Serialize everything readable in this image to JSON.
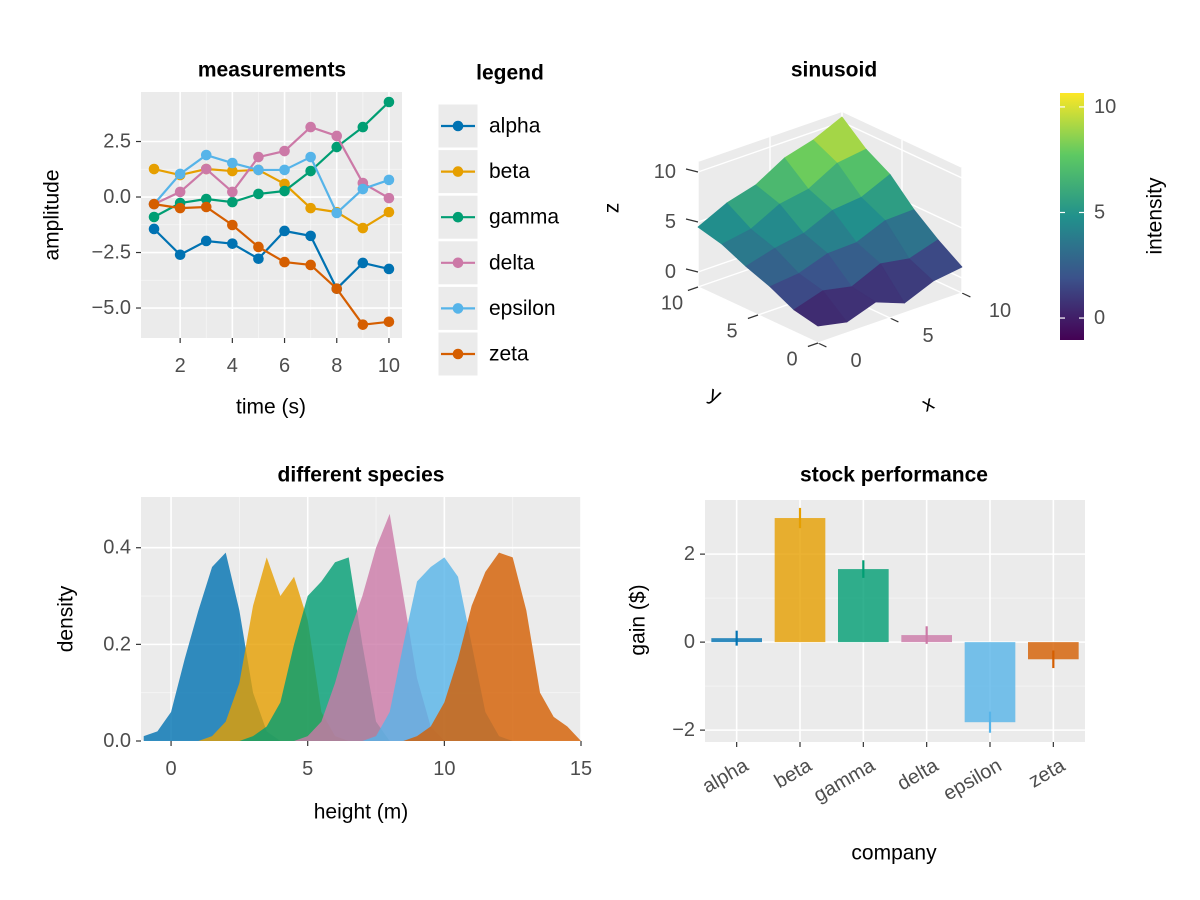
{
  "chart_data": [
    {
      "type": "line",
      "title": "measurements",
      "x_label": "time (s)",
      "y_label": "amplitude",
      "legend_title": "legend",
      "x": [
        1,
        2,
        3,
        4,
        5,
        6,
        7,
        8,
        9,
        10
      ],
      "series": [
        {
          "name": "alpha",
          "color": "#0072B2",
          "values": [
            -1.44,
            -2.6,
            -1.98,
            -2.1,
            -2.78,
            -1.53,
            -1.75,
            -4.13,
            -2.97,
            -3.24
          ]
        },
        {
          "name": "beta",
          "color": "#E69F00",
          "values": [
            1.26,
            0.99,
            1.26,
            1.17,
            1.22,
            0.59,
            -0.5,
            -0.68,
            -1.4,
            -0.68
          ]
        },
        {
          "name": "gamma",
          "color": "#009E73",
          "values": [
            -0.9,
            -0.27,
            -0.09,
            -0.23,
            0.14,
            0.27,
            1.17,
            2.25,
            3.15,
            4.28
          ]
        },
        {
          "name": "delta",
          "color": "#CC79A7",
          "values": [
            -0.32,
            0.23,
            1.26,
            0.23,
            1.8,
            2.07,
            3.15,
            2.75,
            0.63,
            -0.05
          ]
        },
        {
          "name": "epsilon",
          "color": "#56B4E9",
          "values": [
            -0.32,
            1.04,
            1.89,
            1.53,
            1.22,
            1.22,
            1.8,
            -0.72,
            0.36,
            0.77
          ]
        },
        {
          "name": "zeta",
          "color": "#D55E00",
          "values": [
            -0.32,
            -0.5,
            -0.45,
            -1.26,
            -2.25,
            -2.93,
            -3.06,
            -4.13,
            -5.75,
            -5.62
          ]
        }
      ],
      "xlim": [
        0.5,
        10.5
      ],
      "xticks": [
        2,
        4,
        6,
        8,
        10
      ],
      "ylim": [
        -6.35,
        4.73
      ],
      "yticks": [
        {
          "value": 2.5,
          "label": "2.5"
        },
        {
          "value": 0,
          "label": "0.0"
        },
        {
          "value": -2.5,
          "label": "−2.5"
        },
        {
          "value": -5,
          "label": "−5.0"
        }
      ],
      "grid": true,
      "minor_grid": true
    },
    {
      "type": "surface",
      "title": "sinusoid",
      "x_label": "x",
      "y_label": "y",
      "z_label": "z",
      "colorbar_label": "intensity",
      "x": [
        0,
        2,
        4,
        6,
        8,
        10
      ],
      "y": [
        0,
        2,
        4,
        6,
        8,
        10
      ],
      "z": [
        [
          0.2,
          -0.4,
          0.6,
          -0.5,
          0.7,
          1.1
        ],
        [
          0.7,
          1.6,
          1.0,
          2.3,
          1.8,
          2.7
        ],
        [
          1.9,
          2.2,
          3.2,
          3.3,
          4.5,
          4.6
        ],
        [
          2.8,
          3.6,
          4.1,
          5.4,
          5.7,
          7.0
        ],
        [
          3.9,
          4.4,
          5.9,
          6.4,
          8.0,
          8.4
        ],
        [
          4.5,
          5.9,
          6.7,
          8.4,
          9.2,
          10.5
        ]
      ],
      "xlim": [
        0,
        10
      ],
      "ylim": [
        0,
        10
      ],
      "zlim": [
        -1.5,
        11
      ],
      "xticks": [
        0,
        5,
        10
      ],
      "yticks": [
        0,
        5,
        10
      ],
      "zticks": [
        0,
        5,
        10
      ],
      "clim": [
        -1.04,
        10.66
      ],
      "cticks": [
        0,
        5,
        10
      ],
      "colormap": [
        "#440154",
        "#3b528b",
        "#21918c",
        "#5ec962",
        "#fde725"
      ]
    },
    {
      "type": "area",
      "title": "different species",
      "x_label": "height (m)",
      "y_label": "density",
      "x": [
        -1,
        -0.5,
        0,
        0.5,
        1,
        1.5,
        2,
        2.5,
        3,
        3.5,
        4,
        4.5,
        5,
        5.5,
        6,
        6.5,
        7,
        7.5,
        8,
        8.5,
        9,
        9.5,
        10,
        10.5,
        11,
        11.5,
        12,
        12.5,
        13,
        13.5,
        14,
        14.5,
        15
      ],
      "series": [
        {
          "color": "#0072B2",
          "values": [
            0.01,
            0.02,
            0.06,
            0.17,
            0.27,
            0.36,
            0.39,
            0.27,
            0.1,
            0.02,
            0,
            0,
            0,
            0,
            0,
            0,
            0,
            0,
            0,
            0,
            0,
            0,
            0,
            0,
            0,
            0,
            0,
            0,
            0,
            0,
            0,
            0,
            0
          ]
        },
        {
          "color": "#E69F00",
          "values": [
            0,
            0,
            0,
            0,
            0,
            0.01,
            0.04,
            0.12,
            0.28,
            0.38,
            0.3,
            0.34,
            0.25,
            0.06,
            0.01,
            0,
            0,
            0,
            0,
            0,
            0,
            0,
            0,
            0,
            0,
            0,
            0,
            0,
            0,
            0,
            0,
            0,
            0
          ]
        },
        {
          "color": "#009E73",
          "values": [
            0,
            0,
            0,
            0,
            0,
            0,
            0,
            0,
            0.01,
            0.03,
            0.08,
            0.2,
            0.3,
            0.33,
            0.37,
            0.38,
            0.2,
            0.04,
            0,
            0,
            0,
            0,
            0,
            0,
            0,
            0,
            0,
            0,
            0,
            0,
            0,
            0,
            0
          ]
        },
        {
          "color": "#CC79A7",
          "values": [
            0,
            0,
            0,
            0,
            0,
            0,
            0,
            0,
            0,
            0,
            0,
            0,
            0.01,
            0.04,
            0.12,
            0.22,
            0.3,
            0.4,
            0.47,
            0.3,
            0.13,
            0.03,
            0,
            0,
            0,
            0,
            0,
            0,
            0,
            0,
            0,
            0,
            0
          ]
        },
        {
          "color": "#56B4E9",
          "values": [
            0,
            0,
            0,
            0,
            0,
            0,
            0,
            0,
            0,
            0,
            0,
            0,
            0,
            0,
            0,
            0,
            0,
            0.01,
            0.06,
            0.2,
            0.33,
            0.36,
            0.38,
            0.34,
            0.2,
            0.06,
            0.01,
            0,
            0,
            0,
            0,
            0,
            0
          ]
        },
        {
          "color": "#D55E00",
          "values": [
            0,
            0,
            0,
            0,
            0,
            0,
            0,
            0,
            0,
            0,
            0,
            0,
            0,
            0,
            0,
            0,
            0,
            0,
            0,
            0,
            0.01,
            0.03,
            0.08,
            0.17,
            0.28,
            0.35,
            0.39,
            0.38,
            0.27,
            0.1,
            0.05,
            0.03,
            0
          ]
        }
      ],
      "opacity": 0.8,
      "xlim": [
        -1.1,
        15
      ],
      "xticks": [
        0,
        5,
        10,
        15
      ],
      "ylim": [
        0,
        0.505
      ],
      "yticks": [
        {
          "value": 0,
          "label": "0.0"
        },
        {
          "value": 0.2,
          "label": "0.2"
        },
        {
          "value": 0.4,
          "label": "0.4"
        }
      ],
      "grid": true,
      "minor_grid": true
    },
    {
      "type": "bar",
      "title": "stock performance",
      "x_label": "company",
      "y_label": "gain ($)",
      "categories": [
        "alpha",
        "beta",
        "gamma",
        "delta",
        "epsilon",
        "zeta"
      ],
      "values": [
        0.09,
        2.82,
        1.66,
        0.16,
        -1.82,
        -0.39
      ],
      "errors": [
        0.17,
        0.23,
        0.2,
        0.2,
        0.24,
        0.2
      ],
      "colors": [
        "#0072B2",
        "#E69F00",
        "#009E73",
        "#CC79A7",
        "#56B4E9",
        "#D55E00"
      ],
      "opacity": 0.8,
      "ylim": [
        -2.27,
        3.23
      ],
      "yticks": [
        {
          "value": -2,
          "label": "−2"
        },
        0,
        2
      ],
      "grid": true,
      "minor_grid": true
    }
  ]
}
